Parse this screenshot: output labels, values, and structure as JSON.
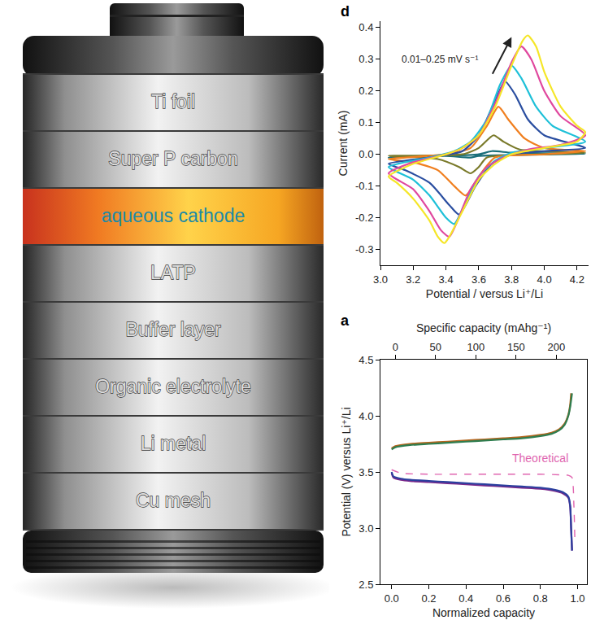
{
  "diagram": {
    "layers": [
      "Ti foil",
      "Super P carbon",
      "aqueous cathode",
      "LATP",
      "Buffer layer",
      "Organic electrolyte",
      "Li metal",
      "Cu mesh"
    ],
    "highlight": "aqueous cathode"
  },
  "chart_data": [
    {
      "type": "line",
      "panel": "d",
      "x_label": "Potential / versus Li⁺/Li",
      "y_label": "Current (mA)",
      "xlim": [
        3.0,
        4.27
      ],
      "xticks": [
        {
          "value": 3.0,
          "label": "3.0"
        },
        3.2,
        3.4,
        3.6,
        3.8,
        {
          "value": 4.0,
          "label": "4.0"
        },
        4.2
      ],
      "ylim": [
        -0.35,
        0.42
      ],
      "yticks": [
        -0.3,
        -0.2,
        -0.1,
        {
          "value": 0,
          "label": "0.0"
        },
        0.1,
        0.2,
        0.3,
        0.4
      ],
      "grid": false,
      "annotations": [
        {
          "text": "0.01–0.25 mV s⁻¹",
          "x": 3.36,
          "y": 0.3,
          "arrow_x": [
            3.68,
            3.8
          ],
          "arrow_y": [
            0.25,
            0.37
          ]
        }
      ],
      "series": [
        {
          "color": "#1a6f7a",
          "x": [
            3.05,
            3.6,
            3.68,
            3.8,
            4.25,
            3.6,
            3.55,
            3.4,
            3.05
          ],
          "values": [
            -0.01,
            0.0,
            0.01,
            0.005,
            0.002,
            -0.005,
            -0.01,
            -0.005,
            -0.01
          ]
        },
        {
          "color": "#7a7a2a",
          "x": [
            3.05,
            3.5,
            3.6,
            3.69,
            3.75,
            3.85,
            4.25,
            4.0,
            3.65,
            3.6,
            3.55,
            3.48,
            3.35,
            3.05
          ],
          "values": [
            -0.005,
            0.0,
            0.02,
            0.06,
            0.04,
            0.015,
            0.005,
            0.0,
            -0.01,
            -0.04,
            -0.06,
            -0.04,
            -0.015,
            -0.005
          ]
        },
        {
          "color": "#f07f1f",
          "x": [
            3.05,
            3.4,
            3.55,
            3.65,
            3.72,
            3.78,
            3.88,
            4.0,
            4.25,
            4.0,
            3.7,
            3.6,
            3.52,
            3.45,
            3.35,
            3.2,
            3.05
          ],
          "values": [
            -0.015,
            0.0,
            0.02,
            0.09,
            0.15,
            0.11,
            0.05,
            0.02,
            0.01,
            0.0,
            -0.01,
            -0.07,
            -0.13,
            -0.1,
            -0.05,
            -0.025,
            -0.015
          ]
        },
        {
          "color": "#2a4ea0",
          "x": [
            3.05,
            3.3,
            3.5,
            3.6,
            3.7,
            3.76,
            3.82,
            3.9,
            4.0,
            4.25,
            4.0,
            3.8,
            3.68,
            3.58,
            3.48,
            3.42,
            3.3,
            3.15,
            3.05
          ],
          "values": [
            -0.03,
            -0.01,
            0.01,
            0.06,
            0.17,
            0.23,
            0.19,
            0.11,
            0.06,
            0.02,
            0.01,
            0.0,
            -0.03,
            -0.1,
            -0.19,
            -0.16,
            -0.09,
            -0.05,
            -0.03
          ]
        },
        {
          "color": "#1ec0d8",
          "x": [
            3.05,
            3.3,
            3.45,
            3.55,
            3.65,
            3.73,
            3.8,
            3.86,
            3.95,
            4.05,
            4.25,
            4.0,
            3.8,
            3.7,
            3.6,
            3.52,
            3.45,
            3.4,
            3.3,
            3.2,
            3.05
          ],
          "values": [
            -0.04,
            -0.01,
            0.01,
            0.04,
            0.11,
            0.22,
            0.28,
            0.24,
            0.15,
            0.09,
            0.04,
            0.02,
            0.005,
            -0.02,
            -0.07,
            -0.15,
            -0.22,
            -0.2,
            -0.13,
            -0.08,
            -0.04
          ]
        },
        {
          "color": "#e0489e",
          "x": [
            3.05,
            3.2,
            3.4,
            3.5,
            3.6,
            3.7,
            3.8,
            3.86,
            3.92,
            4.0,
            4.1,
            4.25,
            4.1,
            3.9,
            3.75,
            3.65,
            3.55,
            3.47,
            3.42,
            3.37,
            3.3,
            3.2,
            3.05
          ],
          "values": [
            -0.06,
            -0.025,
            0.0,
            0.02,
            0.06,
            0.16,
            0.29,
            0.34,
            0.3,
            0.2,
            0.12,
            0.06,
            0.03,
            0.015,
            -0.01,
            -0.04,
            -0.11,
            -0.21,
            -0.26,
            -0.24,
            -0.18,
            -0.11,
            -0.06
          ]
        },
        {
          "color": "#f5e628",
          "x": [
            3.05,
            3.2,
            3.4,
            3.5,
            3.6,
            3.7,
            3.8,
            3.87,
            3.9,
            3.95,
            4.0,
            4.1,
            4.2,
            4.25,
            4.2,
            4.0,
            3.8,
            3.7,
            3.6,
            3.5,
            3.42,
            3.39,
            3.35,
            3.3,
            3.2,
            3.1,
            3.05
          ],
          "values": [
            -0.07,
            -0.03,
            0.0,
            0.02,
            0.06,
            0.15,
            0.28,
            0.36,
            0.375,
            0.34,
            0.26,
            0.15,
            0.09,
            0.07,
            0.04,
            0.02,
            0.0,
            -0.03,
            -0.08,
            -0.18,
            -0.26,
            -0.28,
            -0.26,
            -0.21,
            -0.14,
            -0.09,
            -0.07
          ]
        }
      ]
    },
    {
      "type": "line",
      "panel": "a",
      "x_label": "Normalized capacity",
      "y_label": "Potential (V) versus Li⁺/Li",
      "x2_label": "Specific capacity (mAhg⁻¹)",
      "xlim": [
        -0.06,
        1.05
      ],
      "xticks": [
        {
          "value": 0,
          "label": "0.0"
        },
        0.2,
        0.4,
        0.6,
        0.8,
        {
          "value": 1,
          "label": "1.0"
        }
      ],
      "x2lim": [
        -18.5,
        238
      ],
      "x2ticks": [
        0,
        50,
        100,
        150,
        200
      ],
      "ylim": [
        2.5,
        4.5
      ],
      "yticks": [
        2.5,
        {
          "value": 3,
          "label": "3.0"
        },
        3.5,
        {
          "value": 4,
          "label": "4.0"
        },
        4.5
      ],
      "grid": false,
      "annotations": [
        {
          "text": "Theoretical",
          "x": 0.8,
          "y": 3.62,
          "color": "#e066b0"
        }
      ],
      "series": [
        {
          "color": "#b5651d",
          "x": [
            0,
            0.02,
            0.1,
            0.2,
            0.3,
            0.4,
            0.5,
            0.6,
            0.7,
            0.8,
            0.86,
            0.9,
            0.93,
            0.95,
            0.96,
            0.965
          ],
          "values": [
            3.71,
            3.73,
            3.75,
            3.76,
            3.77,
            3.78,
            3.79,
            3.8,
            3.81,
            3.83,
            3.85,
            3.88,
            3.93,
            4.01,
            4.1,
            4.2
          ]
        },
        {
          "color": "#2e7d4f",
          "x": [
            0,
            0.02,
            0.1,
            0.2,
            0.3,
            0.4,
            0.5,
            0.6,
            0.7,
            0.8,
            0.86,
            0.9,
            0.93,
            0.95,
            0.96,
            0.97
          ],
          "values": [
            3.7,
            3.72,
            3.74,
            3.75,
            3.76,
            3.77,
            3.78,
            3.79,
            3.8,
            3.82,
            3.84,
            3.87,
            3.92,
            4.0,
            4.08,
            4.2
          ]
        },
        {
          "color": "#7b2a8c",
          "x": [
            0,
            0.01,
            0.05,
            0.1,
            0.2,
            0.3,
            0.4,
            0.5,
            0.6,
            0.7,
            0.8,
            0.88,
            0.92,
            0.95,
            0.96,
            0.965,
            0.97
          ],
          "values": [
            3.49,
            3.45,
            3.43,
            3.42,
            3.41,
            3.4,
            3.39,
            3.38,
            3.37,
            3.36,
            3.35,
            3.33,
            3.31,
            3.27,
            3.19,
            3.0,
            2.8
          ]
        },
        {
          "color": "#2b3f9e",
          "x": [
            0,
            0.01,
            0.05,
            0.1,
            0.2,
            0.3,
            0.4,
            0.5,
            0.6,
            0.7,
            0.8,
            0.88,
            0.92,
            0.95,
            0.96,
            0.965,
            0.97
          ],
          "values": [
            3.5,
            3.46,
            3.44,
            3.43,
            3.42,
            3.41,
            3.4,
            3.39,
            3.38,
            3.37,
            3.36,
            3.34,
            3.32,
            3.28,
            3.2,
            3.0,
            2.8
          ]
        },
        {
          "name": "Theoretical",
          "color": "#e066b0",
          "line_style": "dash",
          "x": [
            0,
            0.05,
            0.2,
            0.4,
            0.6,
            0.8,
            0.9,
            0.95,
            0.97,
            0.98,
            0.985
          ],
          "values": [
            3.52,
            3.49,
            3.48,
            3.48,
            3.48,
            3.48,
            3.475,
            3.47,
            3.45,
            3.2,
            2.9
          ]
        }
      ]
    }
  ]
}
